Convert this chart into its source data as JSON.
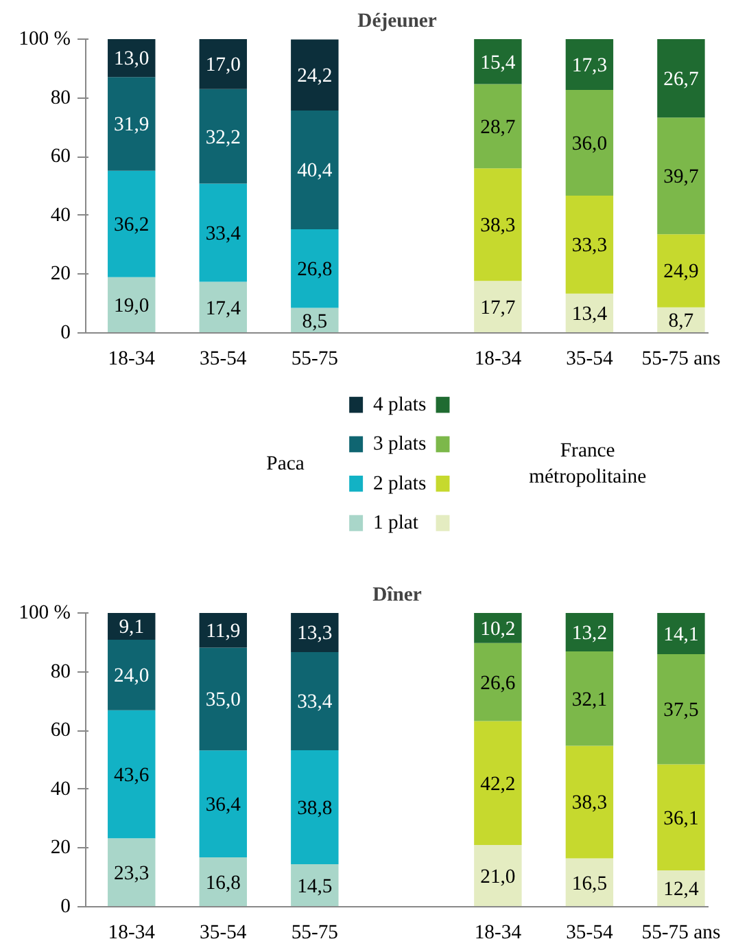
{
  "chart_data": [
    {
      "type": "bar",
      "stacked": true,
      "title": "Déjeuner",
      "legend": "bottom",
      "annotations": [
        "Paca",
        "France métropolitaine"
      ],
      "categories": [
        "18-34",
        "35-54",
        "55-75",
        null,
        "18-34",
        "35-54",
        "55-75 ans"
      ],
      "ylim": [
        0,
        100
      ],
      "yticks": [
        0,
        20,
        40,
        60,
        80,
        {
          "value": 100,
          "label": "100 %"
        }
      ],
      "grid": false,
      "series": [
        {
          "name": "1 plat",
          "colors": [
            "#a9d6c9",
            "#a9d6c9",
            "#a9d6c9",
            null,
            "#e4ecc1",
            "#e4ecc1",
            "#e4ecc1"
          ],
          "values": [
            19.0,
            17.4,
            8.5,
            null,
            17.7,
            13.4,
            8.7
          ],
          "value_labels": [
            "19,0",
            "17,4",
            "8,5",
            null,
            "17,7",
            "13,4",
            "8,7"
          ]
        },
        {
          "name": "2 plats",
          "colors": [
            "#12b2c5",
            "#12b2c5",
            "#12b2c5",
            null,
            "#c6d92e",
            "#c6d92e",
            "#c6d92e"
          ],
          "values": [
            36.2,
            33.4,
            26.8,
            null,
            38.3,
            33.3,
            24.9
          ],
          "value_labels": [
            "36,2",
            "33,4",
            "26,8",
            null,
            "38,3",
            "33,3",
            "24,9"
          ]
        },
        {
          "name": "3 plats",
          "colors": [
            "#0f6571",
            "#0f6571",
            "#0f6571",
            null,
            "#7cb84a",
            "#7cb84a",
            "#7cb84a"
          ],
          "values": [
            31.9,
            32.2,
            40.4,
            null,
            28.7,
            36.0,
            39.7
          ],
          "value_labels": [
            "31,9",
            "32,2",
            "40,4",
            null,
            "28,7",
            "36,0",
            "39,7"
          ]
        },
        {
          "name": "4 plats",
          "colors": [
            "#0c2f3b",
            "#0c2f3b",
            "#0c2f3b",
            null,
            "#1f6b31",
            "#1f6b31",
            "#1f6b31"
          ],
          "values": [
            13.0,
            17.0,
            24.2,
            null,
            15.4,
            17.3,
            26.7
          ],
          "value_labels": [
            "13,0",
            "17,0",
            "24,2",
            null,
            "15,4",
            "17,3",
            "26,7"
          ]
        }
      ]
    },
    {
      "type": "bar",
      "stacked": true,
      "title": "Dîner",
      "categories": [
        "18-34",
        "35-54",
        "55-75",
        null,
        "18-34",
        "35-54",
        "55-75 ans"
      ],
      "ylim": [
        0,
        100
      ],
      "yticks": [
        0,
        20,
        40,
        60,
        80,
        {
          "value": 100,
          "label": "100 %"
        }
      ],
      "grid": false,
      "series": [
        {
          "colors": [
            "#a9d6c9",
            "#a9d6c9",
            "#a9d6c9",
            null,
            "#e4ecc1",
            "#e4ecc1",
            "#e4ecc1"
          ],
          "values": [
            23.3,
            16.8,
            14.5,
            null,
            21.0,
            16.5,
            12.4
          ],
          "value_labels": [
            "23,3",
            "16,8",
            "14,5",
            null,
            "21,0",
            "16,5",
            "12,4"
          ]
        },
        {
          "colors": [
            "#12b2c5",
            "#12b2c5",
            "#12b2c5",
            null,
            "#c6d92e",
            "#c6d92e",
            "#c6d92e"
          ],
          "values": [
            43.6,
            36.4,
            38.8,
            null,
            42.2,
            38.3,
            36.1
          ],
          "value_labels": [
            "43,6",
            "36,4",
            "38,8",
            null,
            "42,2",
            "38,3",
            "36,1"
          ]
        },
        {
          "colors": [
            "#0f6571",
            "#0f6571",
            "#0f6571",
            null,
            "#7cb84a",
            "#7cb84a",
            "#7cb84a"
          ],
          "values": [
            24.0,
            35.0,
            33.4,
            null,
            26.6,
            32.1,
            37.5
          ],
          "value_labels": [
            "24,0",
            "35,0",
            "33,4",
            null,
            "26,6",
            "32,1",
            "37,5"
          ]
        },
        {
          "colors": [
            "#0c2f3b",
            "#0c2f3b",
            "#0c2f3b",
            null,
            "#1f6b31",
            "#1f6b31",
            "#1f6b31"
          ],
          "values": [
            9.1,
            11.9,
            13.3,
            null,
            10.2,
            13.2,
            14.1
          ],
          "value_labels": [
            "9,1",
            "11,9",
            "13,3",
            null,
            "10,2",
            "13,2",
            "14,1"
          ]
        }
      ]
    }
  ]
}
